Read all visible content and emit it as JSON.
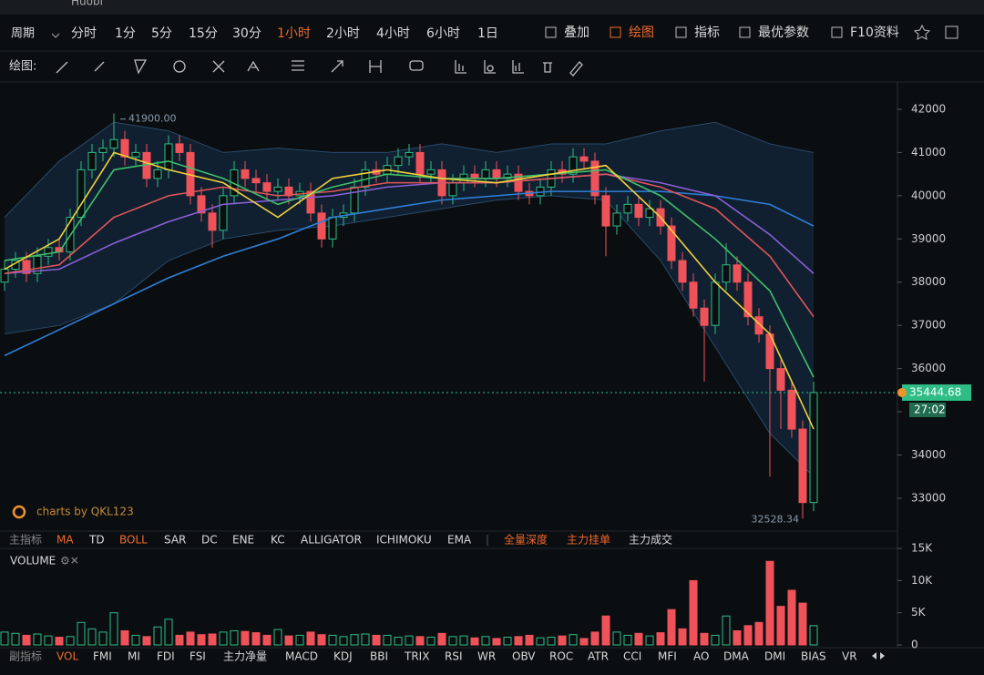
{
  "header": {
    "tab": "Huobi"
  },
  "toolbar": {
    "period_label": "周期",
    "periods": [
      "分时",
      "1分",
      "5分",
      "15分",
      "30分",
      "1小时",
      "2小时",
      "4小时",
      "6小时",
      "1日"
    ],
    "active_period": 5,
    "tools": [
      "叠加",
      "绘图",
      "指标",
      "最优参数",
      "F10资料"
    ],
    "active_tool": 1
  },
  "drawing_bar": {
    "label": "绘图:"
  },
  "chart_data": {
    "type": "candlestick",
    "open": [
      38000,
      38300,
      38500,
      38200,
      38600,
      38800,
      38700,
      39500,
      40600,
      41000,
      41100,
      41300,
      40900,
      41000,
      40400,
      40600,
      41200,
      41000,
      40000,
      39600,
      39200,
      40000,
      40600,
      40400,
      40300,
      40100,
      40200,
      40000,
      40100,
      39600,
      39000,
      39500,
      39600,
      40200,
      40600,
      40500,
      40700,
      40900,
      41000,
      40500,
      40600,
      40000,
      40300,
      40500,
      40400,
      40600,
      40400,
      40500,
      40100,
      40000,
      40200,
      40600,
      40500,
      40900,
      40800,
      40000,
      39300,
      39600,
      39800,
      39500,
      39700,
      39300,
      38500,
      38000,
      37400,
      37000,
      38000,
      38400,
      38000,
      37200,
      36800,
      36000,
      35500,
      34600,
      32900
    ],
    "high": [
      38500,
      38700,
      38700,
      38800,
      39000,
      39000,
      39700,
      40800,
      41200,
      41300,
      41900,
      41500,
      41200,
      41200,
      40800,
      41400,
      41400,
      41200,
      40200,
      39800,
      40200,
      40800,
      40800,
      40600,
      40500,
      40400,
      40400,
      40300,
      40300,
      39800,
      39700,
      39800,
      40400,
      40800,
      40800,
      40900,
      41100,
      41200,
      41200,
      40800,
      40800,
      40500,
      40700,
      40700,
      40800,
      40800,
      40700,
      40700,
      40300,
      40400,
      40800,
      40800,
      41100,
      41100,
      41000,
      40200,
      39800,
      40000,
      40000,
      39900,
      39900,
      39500,
      38700,
      38200,
      37600,
      38200,
      38900,
      38600,
      38200,
      37400,
      37000,
      36200,
      35700,
      34800,
      35700
    ],
    "low": [
      37800,
      38100,
      38000,
      38000,
      38400,
      38500,
      38500,
      39300,
      40400,
      40800,
      40900,
      40700,
      40700,
      40200,
      40200,
      40400,
      40800,
      39800,
      39400,
      38800,
      39000,
      39800,
      40200,
      40100,
      39900,
      39900,
      39800,
      39800,
      39400,
      38800,
      38800,
      39300,
      39400,
      40000,
      40300,
      40300,
      40500,
      40700,
      40300,
      40300,
      39800,
      39800,
      40100,
      40200,
      40200,
      40200,
      40200,
      39900,
      39800,
      39800,
      40000,
      40300,
      40300,
      40600,
      39800,
      38600,
      39100,
      39400,
      39300,
      39300,
      39100,
      38300,
      37800,
      37200,
      35700,
      36800,
      37800,
      37800,
      37000,
      36600,
      33500,
      34600,
      34400,
      32528.34,
      32700
    ],
    "close": [
      38300,
      38500,
      38200,
      38600,
      38800,
      38700,
      39500,
      40600,
      41000,
      41100,
      41300,
      40900,
      41000,
      40400,
      40600,
      41200,
      41000,
      40000,
      39600,
      39200,
      40000,
      40600,
      40400,
      40300,
      40100,
      40200,
      40000,
      40100,
      39600,
      39000,
      39500,
      39600,
      40200,
      40600,
      40500,
      40700,
      40900,
      41000,
      40500,
      40600,
      40000,
      40300,
      40500,
      40400,
      40600,
      40400,
      40500,
      40100,
      40000,
      40200,
      40600,
      40500,
      40900,
      40800,
      40000,
      39300,
      39600,
      39800,
      39500,
      39700,
      39300,
      38500,
      38000,
      37400,
      37000,
      38000,
      38400,
      38000,
      37200,
      36800,
      36000,
      35500,
      34600,
      32900,
      35444.68
    ],
    "up_color": "#2ebd85",
    "down_color": "#f0525a",
    "ylim": [
      32240,
      42590
    ],
    "yticks": [
      42000,
      41000,
      40000,
      39000,
      38000,
      37000,
      36000,
      35000,
      34000,
      33000
    ],
    "lines": {
      "x": [
        0,
        5,
        10,
        15,
        20,
        25,
        30,
        35,
        40,
        45,
        50,
        55,
        60,
        65,
        70,
        74
      ],
      "series": [
        {
          "color": "#2f7fd8",
          "values": [
            36300,
            36900,
            37500,
            38100,
            38600,
            39000,
            39500,
            39700,
            39900,
            40000,
            40100,
            40100,
            40100,
            40000,
            39800,
            39300
          ]
        },
        {
          "color": "#8b5fd6",
          "values": [
            38200,
            38300,
            38900,
            39400,
            39800,
            39900,
            40000,
            40200,
            40300,
            40300,
            40400,
            40500,
            40300,
            40000,
            39100,
            38200
          ]
        },
        {
          "color": "#e0555a",
          "values": [
            38200,
            38400,
            39500,
            40000,
            40200,
            40000,
            40100,
            40300,
            40300,
            40300,
            40400,
            40500,
            40200,
            39700,
            38600,
            37200
          ]
        },
        {
          "color": "#3fbf6a",
          "values": [
            38500,
            38700,
            40600,
            40800,
            40400,
            39800,
            40200,
            40500,
            40400,
            40400,
            40500,
            40600,
            40000,
            39000,
            37800,
            35800
          ]
        },
        {
          "color": "#f2d03b",
          "values": [
            38300,
            39000,
            41000,
            40600,
            40300,
            39500,
            40400,
            40600,
            40400,
            40300,
            40500,
            40700,
            39500,
            38000,
            36800,
            34600
          ]
        }
      ]
    },
    "band": {
      "color": "#16304a",
      "upper": [
        39500,
        40800,
        41700,
        41500,
        41000,
        41100,
        41000,
        41000,
        41200,
        41000,
        41200,
        41200,
        41500,
        41700,
        41200,
        41000
      ],
      "lower": [
        36800,
        37000,
        37500,
        38500,
        39000,
        39200,
        39300,
        39500,
        39700,
        39900,
        40000,
        39900,
        38500,
        36500,
        34500,
        33500
      ]
    },
    "annotations": [
      "41900.00",
      "32528.34"
    ],
    "countdown": "27:02",
    "watermark": "charts by QKL123"
  },
  "main_tabs": {
    "items": [
      "主指标",
      "MA",
      "TD",
      "BOLL",
      "SAR",
      "DC",
      "ENE",
      "KC",
      "ALLIGATOR",
      "ICHIMOKU",
      "EMA",
      "全量深度",
      "主力挂单",
      "主力成交"
    ],
    "active": [
      1,
      3,
      11,
      12
    ]
  },
  "volume": {
    "title": "VOLUME",
    "values": [
      2000,
      1800,
      1500,
      1700,
      1400,
      1200,
      1300,
      3500,
      2500,
      2000,
      5000,
      2200,
      1500,
      1300,
      2800,
      4000,
      1500,
      2000,
      1600,
      1700,
      2000,
      2200,
      2100,
      1900,
      1500,
      2400,
      1400,
      1500,
      2000,
      1600,
      1500,
      1300,
      1600,
      1700,
      1500,
      1500,
      1200,
      1400,
      1300,
      1200,
      1800,
      1300,
      1400,
      1100,
      1300,
      1000,
      1200,
      1300,
      1500,
      1100,
      1200,
      1400,
      1600,
      1000,
      2000,
      4500,
      2000,
      1500,
      1800,
      1400,
      1900,
      5500,
      2500,
      10000,
      1800,
      1500,
      4500,
      2200,
      3000,
      3500,
      13000,
      6000,
      8500,
      6500,
      3000
    ],
    "ylim": [
      0,
      15300
    ],
    "yticks": [
      0,
      {
        "value": 5000,
        "label": "5K"
      },
      {
        "value": 10000,
        "label": "10K"
      },
      {
        "value": 15000,
        "label": "15K"
      }
    ]
  },
  "sub_tabs": {
    "items": [
      "副指标",
      "VOL",
      "FMI",
      "MI",
      "FDI",
      "FSI",
      "主力净量",
      "MACD",
      "KDJ",
      "BBI",
      "TRIX",
      "RSI",
      "WR",
      "OBV",
      "ROC",
      "ATR",
      "CCI",
      "MFI",
      "AO",
      "DMA",
      "DMI",
      "BIAS",
      "VR"
    ],
    "active": [
      1
    ]
  }
}
